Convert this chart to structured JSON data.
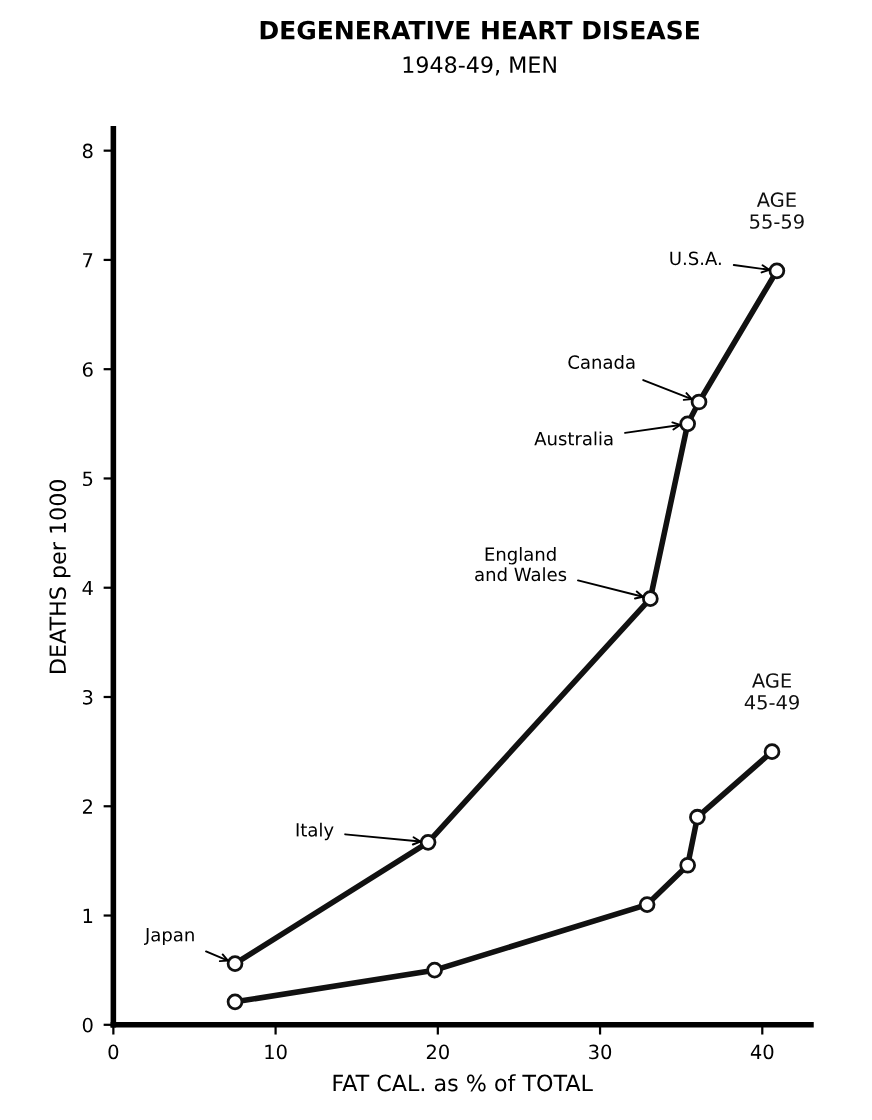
{
  "chart_data": {
    "type": "line",
    "title": "DEGENERATIVE HEART DISEASE",
    "subtitle": "1948-49, MEN",
    "xlabel": "FAT CAL. as % of TOTAL",
    "ylabel": "DEATHS per 1000",
    "xlim": [
      0,
      43
    ],
    "ylim": [
      0,
      8.2
    ],
    "xticks": [
      0,
      10,
      20,
      30,
      40
    ],
    "yticks": [
      0,
      1,
      2,
      3,
      4,
      5,
      6,
      7,
      8
    ],
    "grid": false,
    "legend": false,
    "marker": "circle",
    "line_style": "solid",
    "series": [
      {
        "name": "AGE 55-59",
        "color": "#111111",
        "x": [
          7.5,
          19.4,
          33.1,
          35.4,
          36.1,
          40.9
        ],
        "values": [
          0.56,
          1.67,
          3.9,
          5.5,
          5.7,
          6.9
        ]
      },
      {
        "name": "AGE 45-49",
        "color": "#111111",
        "x": [
          7.5,
          19.8,
          32.9,
          35.4,
          36.0,
          40.6
        ],
        "values": [
          0.21,
          0.5,
          1.1,
          1.46,
          1.9,
          2.5
        ]
      }
    ],
    "annotations": [
      {
        "text": "Japan",
        "x": 7.5,
        "y": 0.56
      },
      {
        "text": "Italy",
        "x": 19.4,
        "y": 1.67
      },
      {
        "text": "England\nand Wales",
        "x": 33.1,
        "y": 3.9
      },
      {
        "text": "Australia",
        "x": 35.4,
        "y": 5.5
      },
      {
        "text": "Canada",
        "x": 36.1,
        "y": 5.7
      },
      {
        "text": "U.S.A.",
        "x": 40.9,
        "y": 6.9
      }
    ]
  }
}
